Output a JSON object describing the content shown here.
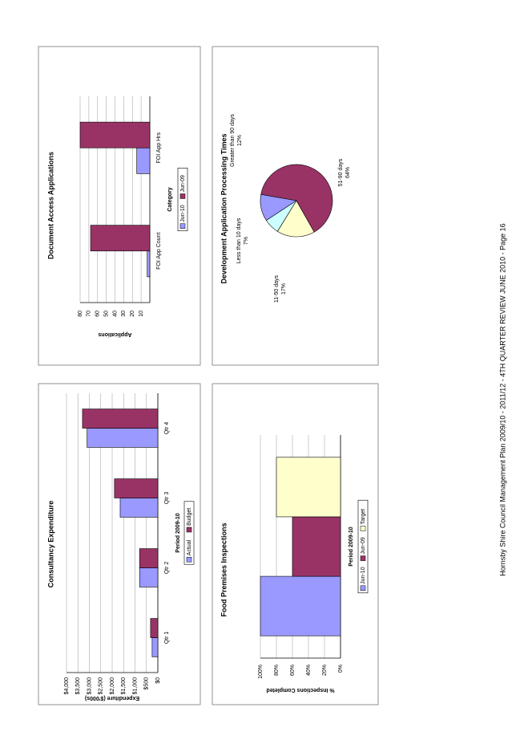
{
  "chart_data": [
    {
      "type": "bar",
      "title": "Consultancy Expenditure",
      "x_label": "Period 2009-10",
      "y_label": "Expenditure ($'000s)",
      "categories": [
        "Qtr 1",
        "Qtr 2",
        "Qtr 3",
        "Qtr 4"
      ],
      "series": [
        {
          "name": "Actual",
          "color": "#9999ff",
          "values": [
            250,
            800,
            1650,
            3100
          ]
        },
        {
          "name": "Budget",
          "color": "#993366",
          "values": [
            320,
            800,
            1900,
            3300
          ]
        }
      ],
      "ylim": [
        0,
        4000
      ],
      "yticks": [
        {
          "value": 0,
          "label": "$0"
        },
        {
          "value": 500,
          "label": "$500"
        },
        {
          "value": 1000,
          "label": "$1,000"
        },
        {
          "value": 1500,
          "label": "$1,500"
        },
        {
          "value": 2000,
          "label": "$2,000"
        },
        {
          "value": 2500,
          "label": "$2,500"
        },
        {
          "value": 3000,
          "label": "$3,000"
        },
        {
          "value": 3500,
          "label": "$3,500"
        },
        {
          "value": 4000,
          "label": "$4,000"
        }
      ],
      "grid": true
    },
    {
      "type": "bar",
      "title": "Document Access Applications",
      "x_label": "Category",
      "y_label": "Applications",
      "categories": [
        "FOI App Count",
        "FOI App Hrs"
      ],
      "series": [
        {
          "name": "Jun-10",
          "color": "#9999ff",
          "values": [
            3,
            15
          ]
        },
        {
          "name": "Jun-09",
          "color": "#993366",
          "values": [
            68,
            80
          ]
        }
      ],
      "ylim": [
        0,
        80
      ],
      "yticks": [
        10,
        20,
        30,
        40,
        50,
        60,
        70,
        80
      ],
      "grid": true
    },
    {
      "type": "bar",
      "title": "Food Premises Inspections",
      "x_label": "Period 2009-10",
      "y_label": "% Inspections Completed",
      "categories": [
        null
      ],
      "series": [
        {
          "name": "Jun-10",
          "color": "#9999ff",
          "values": [
            100
          ]
        },
        {
          "name": "Jun-09",
          "color": "#993366",
          "values": [
            60
          ]
        },
        {
          "name": "Target",
          "color": "#ffffcc",
          "values": [
            80
          ]
        }
      ],
      "ylim": [
        0,
        100
      ],
      "yticks": [
        {
          "value": 0,
          "label": "0%"
        },
        {
          "value": 20,
          "label": "20%"
        },
        {
          "value": 40,
          "label": "40%"
        },
        {
          "value": 60,
          "label": "60%"
        },
        {
          "value": 80,
          "label": "80%"
        },
        {
          "value": 100,
          "label": "100%"
        }
      ],
      "grid": true
    },
    {
      "type": "pie",
      "title": "Development Application Processing Times",
      "categories": [
        "Greater than 90 days",
        "Less than 10 days",
        "11-50 days",
        "51-90 days"
      ],
      "values": [
        12,
        7,
        17,
        64
      ],
      "value_labels": [
        "12%",
        "7%",
        "17%",
        "64%"
      ],
      "colors": [
        "#9999ff",
        "#ccffff",
        "#ffffcc",
        "#993366"
      ]
    }
  ],
  "footer": "Hornsby Shire Council Management Plan 2009/10 - 2011/12 - 4TH QUARTER REVIEW JUNE 2010 - Page 16"
}
